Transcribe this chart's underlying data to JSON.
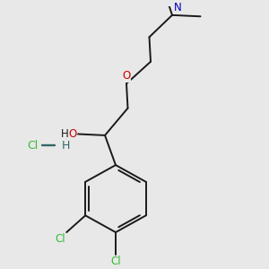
{
  "background_color": "#e8e8e8",
  "bond_color": "#1a1a1a",
  "atom_colors": {
    "O": "#cc0000",
    "N": "#0000bb",
    "Cl_green": "#33bb33",
    "Cl_hcl": "#33bb33",
    "H_hcl": "#336666",
    "C": "#1a1a1a"
  },
  "font_size_atoms": 8.5,
  "lw": 1.4
}
